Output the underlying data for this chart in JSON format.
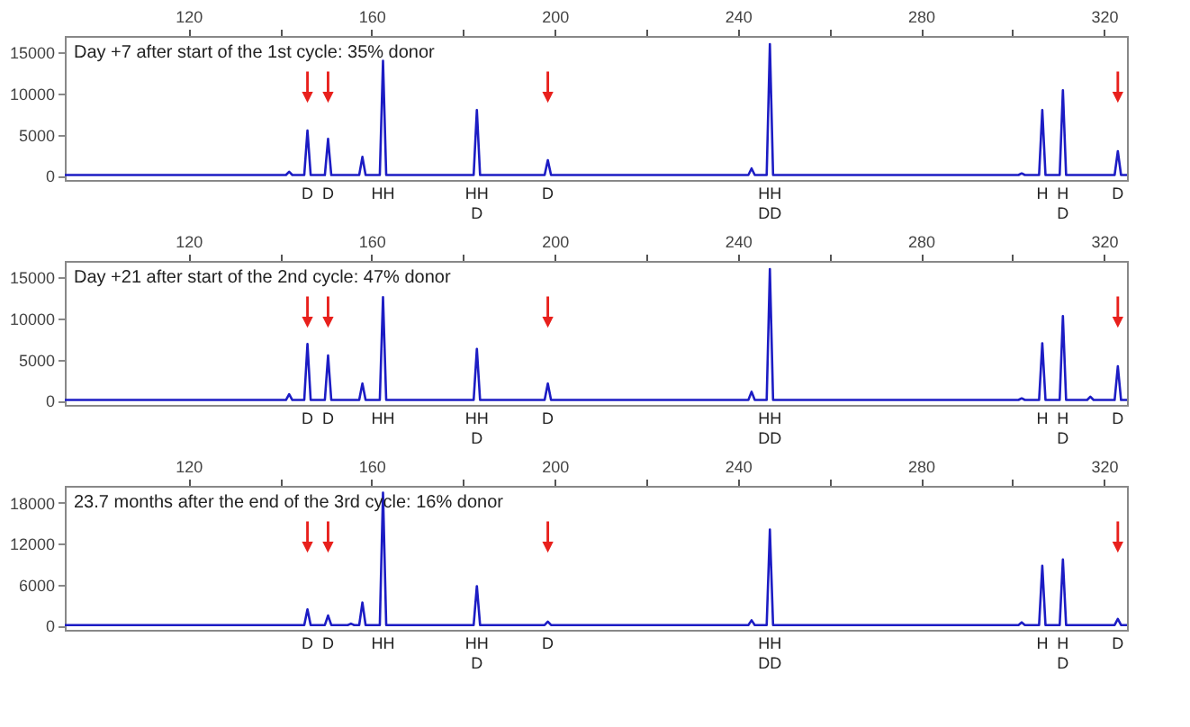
{
  "chart_data": [
    {
      "type": "line",
      "title": "Day +7 after start of the 1st cycle: 35% donor",
      "grid": false,
      "xlim": [
        93,
        325
      ],
      "xticks": [
        120,
        {
          "value": 140,
          "label": null
        },
        160,
        {
          "value": 180,
          "label": null
        },
        200,
        {
          "value": 220,
          "label": null
        },
        240,
        {
          "value": 260,
          "label": null
        },
        280,
        {
          "value": 300,
          "label": null
        },
        320
      ],
      "ylim": [
        -500,
        17000
      ],
      "yticks": [
        0,
        5000,
        10000,
        15000
      ],
      "series": [
        {
          "color": "#1c1cc4",
          "x": [
            93,
            141.3,
            142,
            142.7,
            145.3,
            146,
            146.7,
            149.8,
            150.5,
            151.2,
            157.3,
            158,
            158.7,
            161.8,
            162.5,
            163.2,
            182.3,
            183,
            183.7,
            197.8,
            198.5,
            199.2,
            242.3,
            243,
            243.7,
            246.3,
            247,
            247.7,
            301.3,
            302,
            302.7,
            305.8,
            306.5,
            307.2,
            310.3,
            311,
            311.7,
            322.3,
            323,
            323.7,
            325
          ],
          "values": [
            100,
            100,
            500,
            100,
            100,
            5500,
            100,
            100,
            4500,
            100,
            100,
            2300,
            100,
            100,
            14000,
            100,
            100,
            8000,
            100,
            100,
            1900,
            100,
            100,
            900,
            100,
            100,
            16000,
            100,
            100,
            300,
            100,
            100,
            8000,
            100,
            100,
            10400,
            100,
            100,
            3000,
            100,
            100
          ]
        }
      ],
      "annotations": [
        {
          "text": "D",
          "x": 146,
          "y": 0
        },
        {
          "text": "D",
          "x": 150.5,
          "y": 0
        },
        {
          "text": "HH",
          "x": 162.5,
          "y": 0
        },
        {
          "text": "HH\nD",
          "x": 183,
          "y": 0
        },
        {
          "text": "D",
          "x": 198.5,
          "y": 0
        },
        {
          "text": "HH\nDD",
          "x": 247,
          "y": 0
        },
        {
          "text": "H",
          "x": 306.5,
          "y": 0
        },
        {
          "text": "H\nD",
          "x": 311,
          "y": 0
        },
        {
          "text": "D",
          "x": 323,
          "y": 0
        }
      ]
    },
    {
      "type": "line",
      "title": "Day +21 after start of the 2nd cycle: 47% donor",
      "grid": false,
      "xlim": [
        93,
        325
      ],
      "xticks": [
        120,
        {
          "value": 140,
          "label": null
        },
        160,
        {
          "value": 180,
          "label": null
        },
        200,
        {
          "value": 220,
          "label": null
        },
        240,
        {
          "value": 260,
          "label": null
        },
        280,
        {
          "value": 300,
          "label": null
        },
        320
      ],
      "ylim": [
        -500,
        17000
      ],
      "yticks": [
        0,
        5000,
        10000,
        15000
      ],
      "series": [
        {
          "color": "#1c1cc4",
          "x": [
            93,
            141.3,
            142,
            142.7,
            145.3,
            146,
            146.7,
            149.8,
            150.5,
            151.2,
            157.3,
            158,
            158.7,
            161.8,
            162.5,
            163.2,
            182.3,
            183,
            183.7,
            197.8,
            198.5,
            199.2,
            242.3,
            243,
            243.7,
            246.3,
            247,
            247.7,
            301.3,
            302,
            302.7,
            305.8,
            306.5,
            307.2,
            310.3,
            311,
            311.7,
            316.3,
            317,
            317.7,
            322.3,
            323,
            323.7,
            325
          ],
          "values": [
            100,
            100,
            800,
            100,
            100,
            6900,
            100,
            100,
            5500,
            100,
            100,
            2100,
            100,
            100,
            12600,
            100,
            100,
            6300,
            100,
            100,
            2100,
            100,
            100,
            1100,
            100,
            100,
            16000,
            100,
            100,
            300,
            100,
            100,
            7000,
            100,
            100,
            10300,
            100,
            100,
            500,
            100,
            100,
            4200,
            100,
            100
          ]
        }
      ],
      "annotations": [
        {
          "text": "D",
          "x": 146,
          "y": 0
        },
        {
          "text": "D",
          "x": 150.5,
          "y": 0
        },
        {
          "text": "HH",
          "x": 162.5,
          "y": 0
        },
        {
          "text": "HH\nD",
          "x": 183,
          "y": 0
        },
        {
          "text": "D",
          "x": 198.5,
          "y": 0
        },
        {
          "text": "HH\nDD",
          "x": 247,
          "y": 0
        },
        {
          "text": "H",
          "x": 306.5,
          "y": 0
        },
        {
          "text": "H\nD",
          "x": 311,
          "y": 0
        },
        {
          "text": "D",
          "x": 323,
          "y": 0
        }
      ]
    },
    {
      "type": "line",
      "title": "23.7 months after the end of the 3rd cycle: 16% donor",
      "grid": false,
      "xlim": [
        93,
        325
      ],
      "xticks": [
        120,
        {
          "value": 140,
          "label": null
        },
        160,
        {
          "value": 180,
          "label": null
        },
        200,
        {
          "value": 220,
          "label": null
        },
        240,
        {
          "value": 260,
          "label": null
        },
        280,
        {
          "value": 300,
          "label": null
        },
        320
      ],
      "ylim": [
        -600,
        20500
      ],
      "yticks": [
        0,
        6000,
        12000,
        18000
      ],
      "series": [
        {
          "color": "#1c1cc4",
          "x": [
            93,
            145.3,
            146,
            146.7,
            149.8,
            150.5,
            151.2,
            154.8,
            155.5,
            156.2,
            157.3,
            158,
            158.7,
            161.8,
            162.5,
            163.2,
            182.3,
            183,
            183.7,
            197.8,
            198.5,
            199.2,
            242.3,
            243,
            243.7,
            246.3,
            247,
            247.7,
            301.3,
            302,
            302.7,
            305.8,
            306.5,
            307.2,
            310.3,
            311,
            311.7,
            322.3,
            323,
            323.7,
            325
          ],
          "values": [
            100,
            100,
            2400,
            100,
            100,
            1500,
            100,
            100,
            300,
            100,
            100,
            3400,
            100,
            100,
            19500,
            100,
            100,
            5800,
            100,
            100,
            600,
            100,
            100,
            800,
            100,
            100,
            14100,
            100,
            100,
            500,
            100,
            100,
            8800,
            100,
            100,
            9700,
            100,
            100,
            1000,
            100,
            100
          ]
        }
      ],
      "annotations": [
        {
          "text": "D",
          "x": 146,
          "y": 0
        },
        {
          "text": "D",
          "x": 150.5,
          "y": 0
        },
        {
          "text": "HH",
          "x": 162.5,
          "y": 0
        },
        {
          "text": "HH\nD",
          "x": 183,
          "y": 0
        },
        {
          "text": "D",
          "x": 198.5,
          "y": 0
        },
        {
          "text": "HH\nDD",
          "x": 247,
          "y": 0
        },
        {
          "text": "H",
          "x": 306.5,
          "y": 0
        },
        {
          "text": "H\nD",
          "x": 311,
          "y": 0
        },
        {
          "text": "D",
          "x": 323,
          "y": 0
        }
      ]
    }
  ]
}
